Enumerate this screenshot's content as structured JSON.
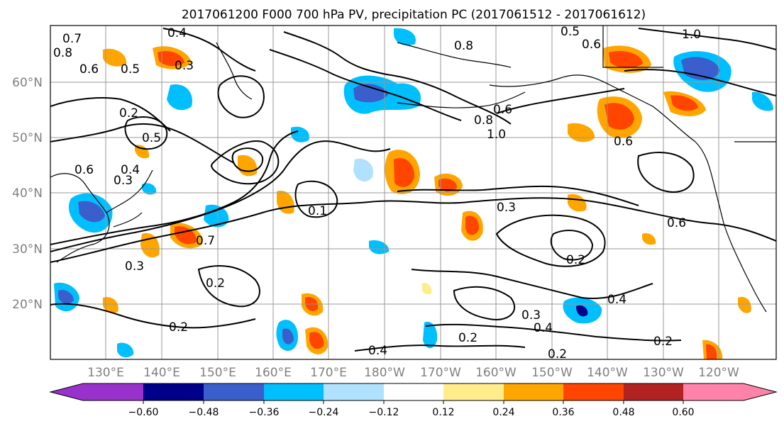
{
  "title": "2017061200 F000 700 hPa PV, precipitation PC (2017061512 - 2017061612)",
  "lat_labels": [
    "60°N",
    "50°N",
    "40°N",
    "30°N",
    "20°N"
  ],
  "lon_labels": [
    "130°E",
    "140°E",
    "150°E",
    "160°E",
    "170°E",
    "180°W",
    "170°W",
    "160°W",
    "150°W",
    "140°W",
    "130°W",
    "120°W"
  ],
  "contour_labels": [
    "0.4",
    "0.3",
    "0.6",
    "0.5",
    "0.7",
    "0.8",
    "0.2",
    "0.3",
    "0.6",
    "0.8",
    "1.0",
    "0.6",
    "0.5",
    "0.8",
    "1.0",
    "0.6",
    "0.3",
    "0.4",
    "0.2",
    "0.4",
    "0.3",
    "0.2",
    "0.2",
    "0.2",
    "0.3",
    "0.7",
    "0.5",
    "0.6",
    "0.4",
    "0.2",
    "0.1",
    "0.6"
  ],
  "colorbar": {
    "tick_labels": [
      "−0.60",
      "−0.48",
      "−0.36",
      "−0.24",
      "−0.12",
      "0.12",
      "0.24",
      "0.36",
      "0.48",
      "0.60"
    ],
    "colors": [
      "#9932CC",
      "#00008B",
      "#3A5FCD",
      "#00BFFF",
      "#B0E2FF",
      "#FFFFFF",
      "#FFEC8B",
      "#FFA500",
      "#FF4500",
      "#B22222",
      "#FF82AB"
    ]
  }
}
